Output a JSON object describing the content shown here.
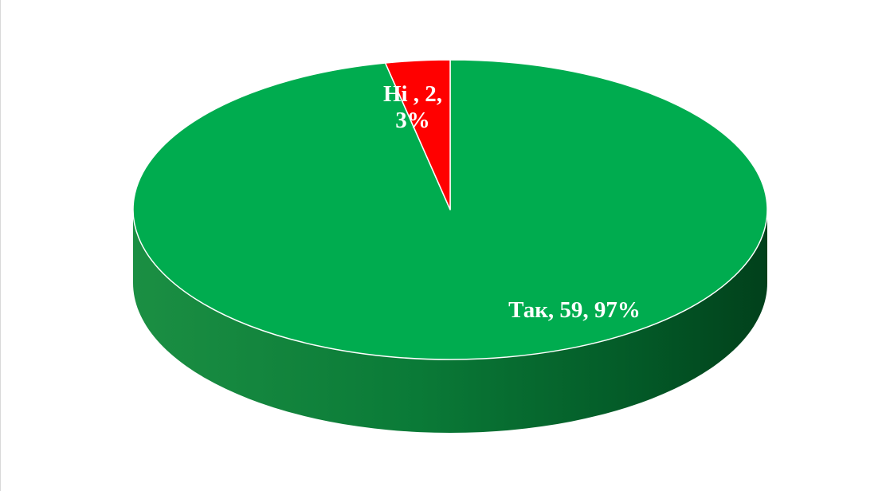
{
  "chart_data": {
    "type": "pie",
    "style": "3d",
    "title": "",
    "categories": [
      "Так",
      "Ні"
    ],
    "values": [
      59,
      2
    ],
    "percentages": [
      97,
      3
    ],
    "colors": [
      "#00ac4f",
      "#ff0000"
    ],
    "labels": [
      {
        "lines": [
          "Так, 59, 97%"
        ]
      },
      {
        "lines": [
          "Ні , 2,",
          "3%"
        ]
      }
    ],
    "legend": "none"
  }
}
